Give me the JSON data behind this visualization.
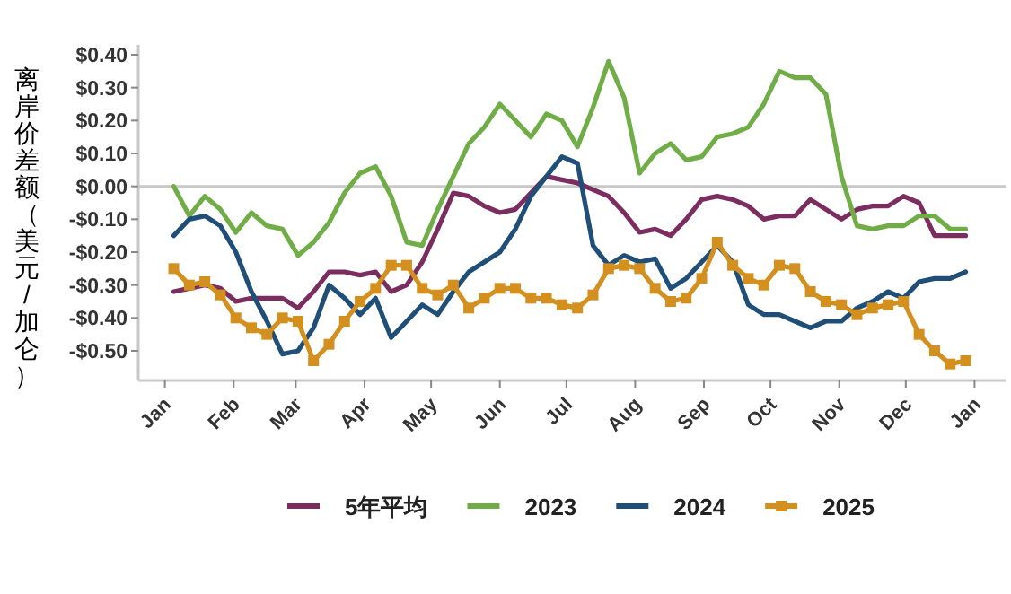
{
  "chart_data": {
    "type": "line",
    "ylabel": "离岸价差额（美元/加仑）",
    "x": [
      "2025-01-05",
      "2025-01-12",
      "2025-01-19",
      "2025-01-26",
      "2025-02-02",
      "2025-02-09",
      "2025-02-16",
      "2025-02-23",
      "2025-03-02",
      "2025-03-09",
      "2025-03-16",
      "2025-03-23",
      "2025-03-30",
      "2025-04-06",
      "2025-04-13",
      "2025-04-20",
      "2025-04-27",
      "2025-05-04",
      "2025-05-11",
      "2025-05-18",
      "2025-05-25",
      "2025-06-01",
      "2025-06-08",
      "2025-06-15",
      "2025-06-22",
      "2025-06-29",
      "2025-07-06",
      "2025-07-13",
      "2025-07-20",
      "2025-07-27",
      "2025-08-03",
      "2025-08-10",
      "2025-08-17",
      "2025-08-24",
      "2025-08-31",
      "2025-09-07",
      "2025-09-14",
      "2025-09-21",
      "2025-09-28",
      "2025-10-05",
      "2025-10-12",
      "2025-10-19",
      "2025-10-26",
      "2025-11-02",
      "2025-11-09",
      "2025-11-16",
      "2025-11-23",
      "2025-11-30",
      "2025-12-07",
      "2025-12-14",
      "2025-12-21",
      "2025-12-28"
    ],
    "series": [
      {
        "name": "5年平均",
        "color": "#7b2d5f",
        "values": [
          -0.32,
          -0.31,
          -0.3,
          -0.31,
          -0.35,
          -0.34,
          -0.34,
          -0.34,
          -0.37,
          -0.32,
          -0.26,
          -0.26,
          -0.27,
          -0.26,
          -0.32,
          -0.3,
          -0.23,
          -0.13,
          -0.02,
          -0.03,
          -0.06,
          -0.08,
          -0.07,
          -0.02,
          0.03,
          0.02,
          0.01,
          -0.01,
          -0.03,
          -0.08,
          -0.14,
          -0.13,
          -0.15,
          -0.1,
          -0.04,
          -0.03,
          -0.04,
          -0.06,
          -0.1,
          -0.09,
          -0.09,
          -0.04,
          -0.07,
          -0.1,
          -0.07,
          -0.06,
          -0.06,
          -0.03,
          -0.05,
          -0.15,
          -0.15,
          -0.15
        ]
      },
      {
        "name": "2023",
        "color": "#70ad47",
        "values": [
          0.0,
          -0.09,
          -0.03,
          -0.07,
          -0.14,
          -0.08,
          -0.12,
          -0.13,
          -0.21,
          -0.17,
          -0.11,
          -0.02,
          0.04,
          0.06,
          -0.03,
          -0.17,
          -0.18,
          -0.07,
          0.03,
          0.13,
          0.18,
          0.25,
          0.2,
          0.15,
          0.22,
          0.2,
          0.12,
          0.24,
          0.38,
          0.27,
          0.04,
          0.1,
          0.13,
          0.08,
          0.09,
          0.15,
          0.16,
          0.18,
          0.25,
          0.35,
          0.33,
          0.33,
          0.28,
          0.03,
          -0.12,
          -0.13,
          -0.12,
          -0.12,
          -0.09,
          -0.09,
          -0.13,
          -0.13
        ]
      },
      {
        "name": "2024",
        "color": "#1f4e79",
        "values": [
          -0.15,
          -0.1,
          -0.09,
          -0.12,
          -0.2,
          -0.32,
          -0.41,
          -0.51,
          -0.5,
          -0.43,
          -0.3,
          -0.34,
          -0.39,
          -0.34,
          -0.46,
          -0.41,
          -0.36,
          -0.39,
          -0.32,
          -0.26,
          -0.23,
          -0.2,
          -0.13,
          -0.03,
          0.03,
          0.09,
          0.07,
          -0.18,
          -0.24,
          -0.21,
          -0.23,
          -0.22,
          -0.31,
          -0.28,
          -0.23,
          -0.18,
          -0.23,
          -0.36,
          -0.39,
          -0.39,
          -0.41,
          -0.43,
          -0.41,
          -0.41,
          -0.37,
          -0.35,
          -0.32,
          -0.34,
          -0.29,
          -0.28,
          -0.28,
          -0.26
        ]
      },
      {
        "name": "2025",
        "color": "#d4901f",
        "marker": "square",
        "values": [
          -0.25,
          -0.3,
          -0.29,
          -0.33,
          -0.4,
          -0.43,
          -0.45,
          -0.4,
          -0.41,
          -0.53,
          -0.48,
          -0.41,
          -0.35,
          -0.31,
          -0.24,
          -0.24,
          -0.31,
          -0.33,
          -0.3,
          -0.37,
          -0.34,
          -0.31,
          -0.31,
          -0.34,
          -0.34,
          -0.36,
          -0.37,
          -0.33,
          -0.25,
          -0.24,
          -0.25,
          -0.31,
          -0.35,
          -0.34,
          -0.28,
          -0.17,
          -0.24,
          -0.28,
          -0.3,
          -0.24,
          -0.25,
          -0.32,
          -0.35,
          -0.36,
          -0.39,
          -0.37,
          -0.36,
          -0.35,
          -0.45,
          -0.5,
          -0.54,
          -0.53
        ]
      }
    ],
    "xlim": [
      "2024-12-20",
      "2026-01-15"
    ],
    "xticks": [
      {
        "value": "2025-01-01",
        "label": "Jan"
      },
      {
        "value": "2025-02-01",
        "label": "Feb"
      },
      {
        "value": "2025-03-01",
        "label": "Mar"
      },
      {
        "value": "2025-04-01",
        "label": "Apr"
      },
      {
        "value": "2025-05-01",
        "label": "May"
      },
      {
        "value": "2025-06-01",
        "label": "Jun"
      },
      {
        "value": "2025-07-01",
        "label": "Jul"
      },
      {
        "value": "2025-08-01",
        "label": "Aug"
      },
      {
        "value": "2025-09-01",
        "label": "Sep"
      },
      {
        "value": "2025-10-01",
        "label": "Oct"
      },
      {
        "value": "2025-11-01",
        "label": "Nov"
      },
      {
        "value": "2025-12-01",
        "label": "Dec"
      },
      {
        "value": "2026-01-01",
        "label": "Jan"
      }
    ],
    "ylim": [
      -0.59,
      0.43
    ],
    "yticks": [
      {
        "value": 0.4,
        "label": "$0.40"
      },
      {
        "value": 0.3,
        "label": "$0.30"
      },
      {
        "value": 0.2,
        "label": "$0.20"
      },
      {
        "value": 0.1,
        "label": "$0.10"
      },
      {
        "value": 0,
        "label": "$0.00"
      },
      {
        "value": -0.1,
        "label": "-$0.10"
      },
      {
        "value": -0.2,
        "label": "-$0.20"
      },
      {
        "value": -0.3,
        "label": "-$0.30"
      },
      {
        "value": -0.4,
        "label": "-$0.40"
      },
      {
        "value": -0.5,
        "label": "-$0.50"
      }
    ],
    "ref_lines": [
      {
        "axis": "y",
        "value": 0,
        "color": "#c8c8c8"
      }
    ],
    "legend": "bottom",
    "line_style": "solid"
  }
}
